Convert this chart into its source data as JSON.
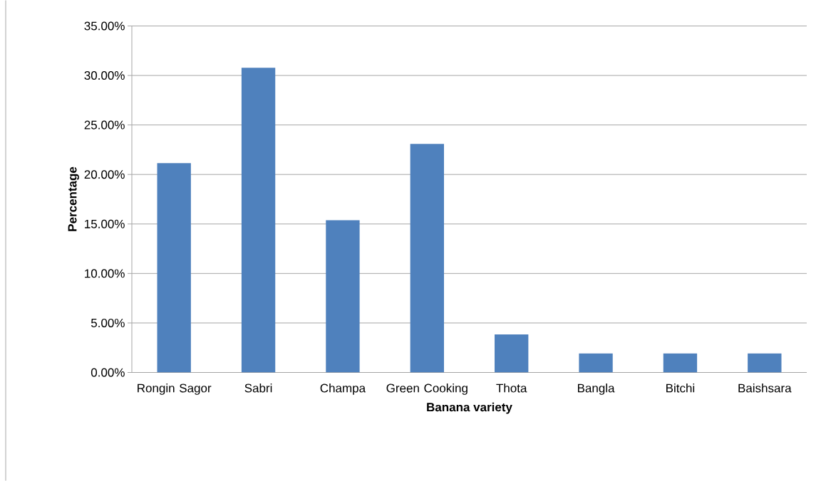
{
  "chart_data": {
    "type": "bar",
    "xlabel": "Banana variety",
    "ylabel": "Percentage",
    "categories": [
      "Rongin Sagor",
      "Sabri",
      "Champa",
      "Green Cooking",
      "Thota",
      "Bangla",
      "Bitchi",
      "Baishsara"
    ],
    "values": [
      21.15,
      30.77,
      15.38,
      23.08,
      3.85,
      1.92,
      1.92,
      1.92
    ],
    "color": "#4f81bd",
    "ylim": [
      0,
      35
    ],
    "yticks": [
      {
        "value": 0,
        "label": "0.00%"
      },
      {
        "value": 5,
        "label": "5.00%"
      },
      {
        "value": 10,
        "label": "10.00%"
      },
      {
        "value": 15,
        "label": "15.00%"
      },
      {
        "value": 20,
        "label": "20.00%"
      },
      {
        "value": 25,
        "label": "25.00%"
      },
      {
        "value": 30,
        "label": "30.00%"
      },
      {
        "value": 35,
        "label": "35.00%"
      }
    ],
    "grid": "y"
  }
}
